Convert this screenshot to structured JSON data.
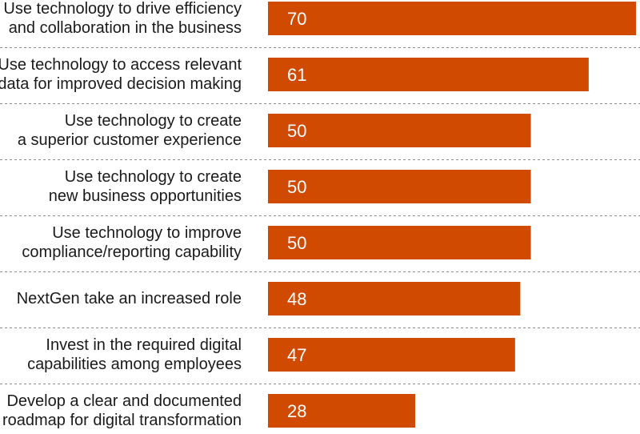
{
  "chart_data": {
    "type": "bar",
    "orientation": "horizontal",
    "title": "",
    "xlabel": "",
    "ylabel": "",
    "xlim": [
      0,
      70
    ],
    "grid": false,
    "legend": "none",
    "bar_color": "#d04a02",
    "label_color": "#1a1a1a",
    "value_color": "#ffffff",
    "separator_color": "#8c8c8c",
    "categories": [
      [
        "Use technology to drive efficiency",
        "and collaboration in the business"
      ],
      [
        "Use technology to access relevant",
        "data for improved decision making"
      ],
      [
        "Use technology to create",
        "a superior customer experience"
      ],
      [
        "Use technology to create",
        "new business opportunities"
      ],
      [
        "Use technology to improve",
        "compliance/reporting capability"
      ],
      [
        "NextGen take an increased role"
      ],
      [
        "Invest in the required digital",
        "capabilities among employees"
      ],
      [
        "Develop a clear and documented",
        "roadmap for digital transformation"
      ]
    ],
    "values": [
      70,
      61,
      50,
      50,
      50,
      48,
      47,
      28
    ]
  }
}
